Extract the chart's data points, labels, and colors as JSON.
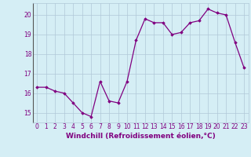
{
  "x": [
    0,
    1,
    2,
    3,
    4,
    5,
    6,
    7,
    8,
    9,
    10,
    11,
    12,
    13,
    14,
    15,
    16,
    17,
    18,
    19,
    20,
    21,
    22,
    23
  ],
  "y": [
    16.3,
    16.3,
    16.1,
    16.0,
    15.5,
    15.0,
    14.8,
    16.6,
    15.6,
    15.5,
    16.6,
    18.7,
    19.8,
    19.6,
    19.6,
    19.0,
    19.1,
    19.6,
    19.7,
    20.3,
    20.1,
    20.0,
    18.6,
    17.3
  ],
  "line_color": "#800080",
  "marker": "D",
  "marker_size": 1.8,
  "xlabel": "Windchill (Refroidissement éolien,°C)",
  "xlabel_fontsize": 6.5,
  "yticks": [
    15,
    16,
    17,
    18,
    19,
    20
  ],
  "xticks": [
    0,
    1,
    2,
    3,
    4,
    5,
    6,
    7,
    8,
    9,
    10,
    11,
    12,
    13,
    14,
    15,
    16,
    17,
    18,
    19,
    20,
    21,
    22,
    23
  ],
  "ylim": [
    14.5,
    20.6
  ],
  "xlim": [
    -0.5,
    23.5
  ],
  "bg_color": "#d5eef5",
  "grid_color": "#b0c8d8",
  "tick_color": "#800080",
  "tick_fontsize": 5.5,
  "line_width": 0.9
}
